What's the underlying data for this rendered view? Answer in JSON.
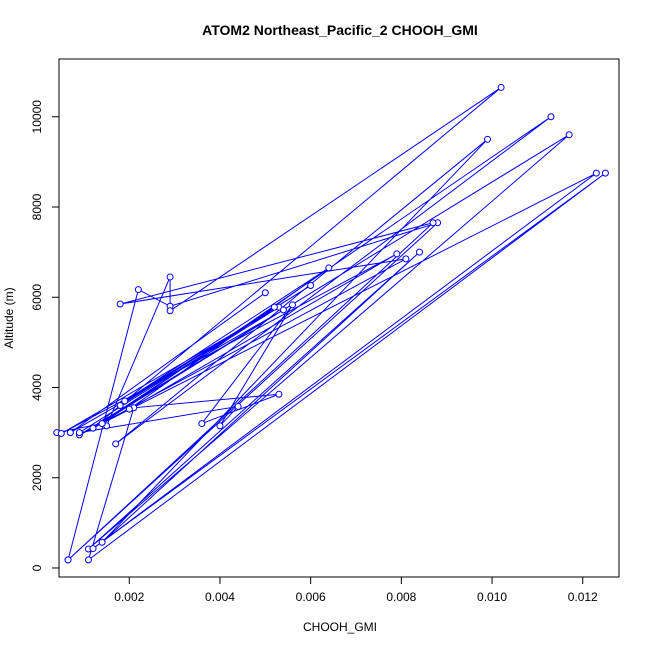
{
  "chart_data": {
    "type": "line",
    "title": "ATOM2 Northeast_Pacific_2 CHOOH_GMI",
    "xlabel": "CHOOH_GMI",
    "ylabel": "Altitude (m)",
    "xlim": [
      0.00045,
      0.0128
    ],
    "ylim": [
      -200,
      11280
    ],
    "x_ticks": [
      0.002,
      0.004,
      0.006,
      0.008,
      0.01,
      0.012
    ],
    "x_tick_labels": [
      "0.002",
      "0.004",
      "0.006",
      "0.008",
      "0.010",
      "0.012"
    ],
    "y_ticks": [
      0,
      2000,
      4000,
      6000,
      8000,
      10000
    ],
    "y_tick_labels": [
      "0",
      "2000",
      "4000",
      "6000",
      "8000",
      "10000"
    ],
    "grid": false,
    "line_color": "#0000ff",
    "series": [
      {
        "x": [
          0.00065,
          0.0088,
          0.0029,
          0.0022,
          0.00065,
          0.0087,
          0.0018,
          0.0081,
          0.0012,
          0.0102,
          0.0029,
          0.0029,
          0.0015,
          0.0014,
          0.0004,
          0.0014,
          0.0113,
          0.0017,
          0.0099,
          0.0014,
          0.0084,
          0.0011,
          0.0117,
          0.0009,
          0.0123,
          0.0012,
          0.0125,
          0.0011,
          0.0021,
          0.0053,
          0.0036,
          0.0056,
          0.004,
          0.0044,
          0.0009,
          0.0053,
          0.0005,
          0.0079,
          0.002,
          0.0064,
          0.0019,
          0.006,
          0.0018,
          0.0052,
          0.0012,
          0.0054,
          0.0007,
          0.005
        ],
        "y": [
          180,
          7650,
          5800,
          6170,
          180,
          7650,
          5850,
          6850,
          3100,
          10650,
          5700,
          6450,
          3150,
          3200,
          3000,
          3200,
          10000,
          2750,
          9500,
          570,
          7000,
          420,
          9600,
          2950,
          8750,
          430,
          8750,
          180,
          3550,
          3850,
          3200,
          5830,
          3150,
          3580,
          3000,
          5780,
          2980,
          6960,
          3520,
          6650,
          3700,
          6260,
          3600,
          5780,
          3100,
          5720,
          3000,
          6100
        ]
      }
    ]
  }
}
